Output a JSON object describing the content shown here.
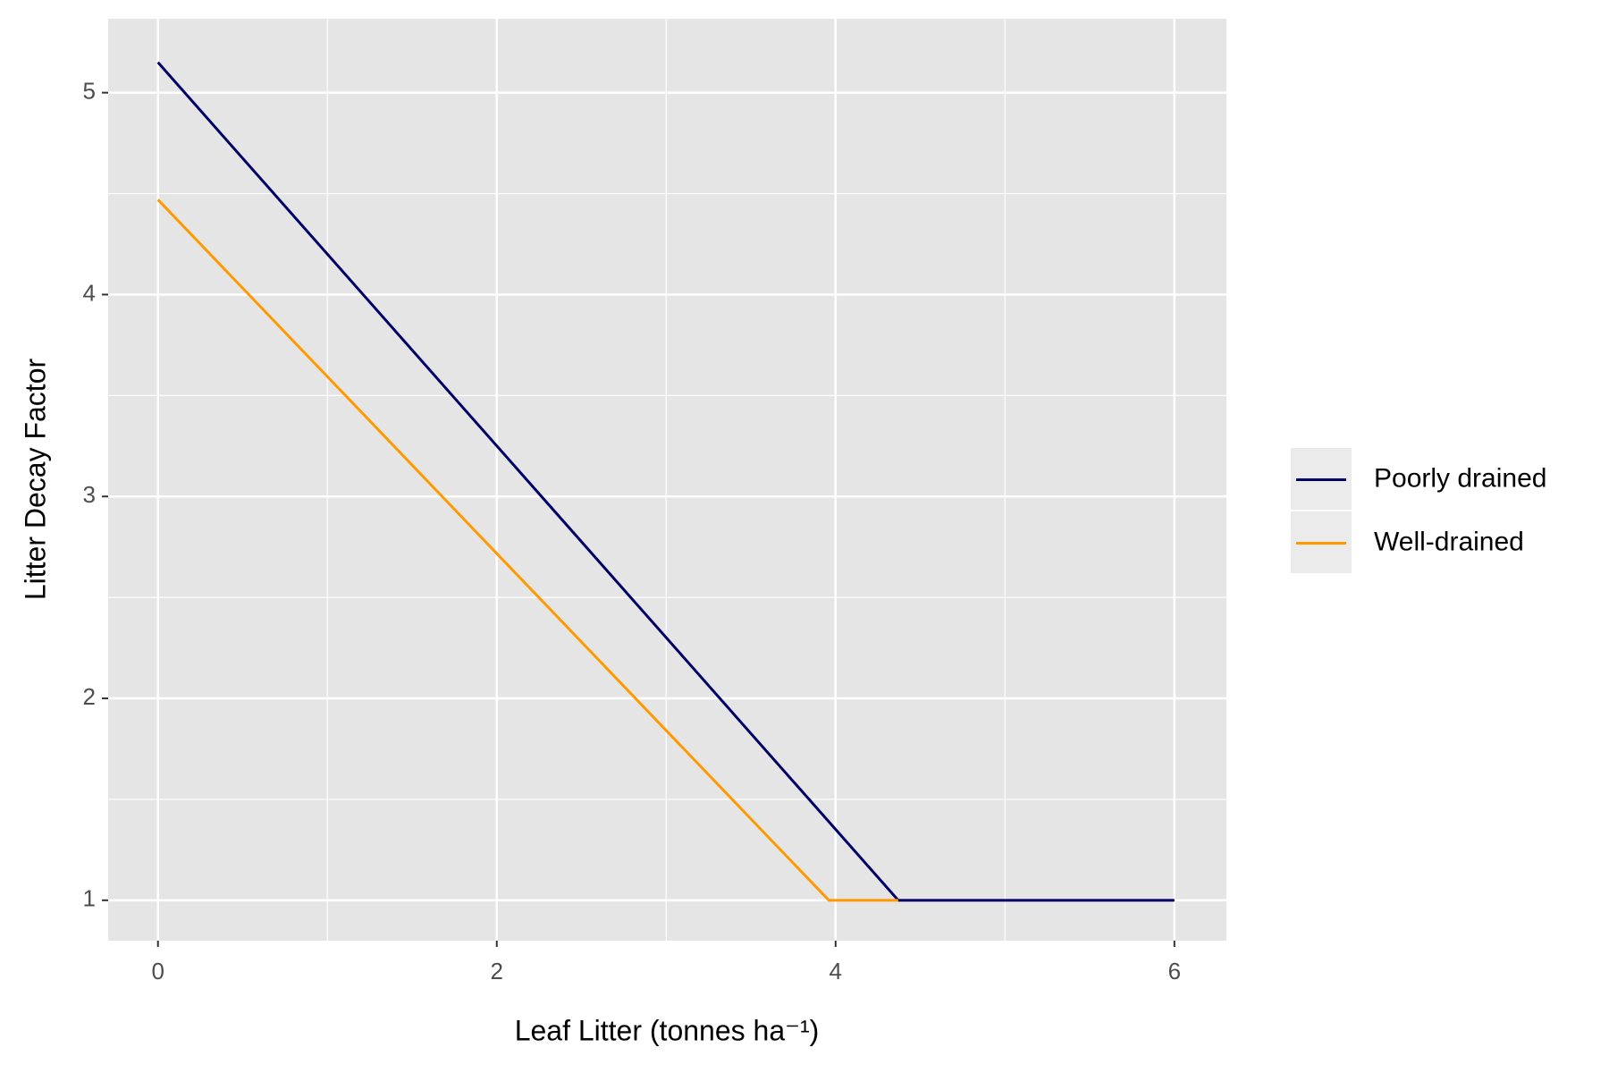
{
  "chart_data": {
    "type": "line",
    "x_label": "Leaf Litter (tonnes ha⁻¹)",
    "y_label": "Litter Decay Factor",
    "series": [
      {
        "name": "Poorly drained",
        "color": "#000066",
        "x": [
          0,
          4.37,
          6
        ],
        "values": [
          5.15,
          1,
          1
        ]
      },
      {
        "name": "Well-drained",
        "color": "#ff9900",
        "x": [
          0,
          3.96,
          4.37
        ],
        "values": [
          4.47,
          1,
          1
        ]
      }
    ],
    "xlim": [
      -0.294,
      6.307
    ],
    "xticks": [
      0,
      2,
      4,
      6
    ],
    "ylim": [
      0.8,
      5.366
    ],
    "yticks": [
      1,
      2,
      3,
      4,
      5
    ],
    "grid": true,
    "legend": "right"
  }
}
